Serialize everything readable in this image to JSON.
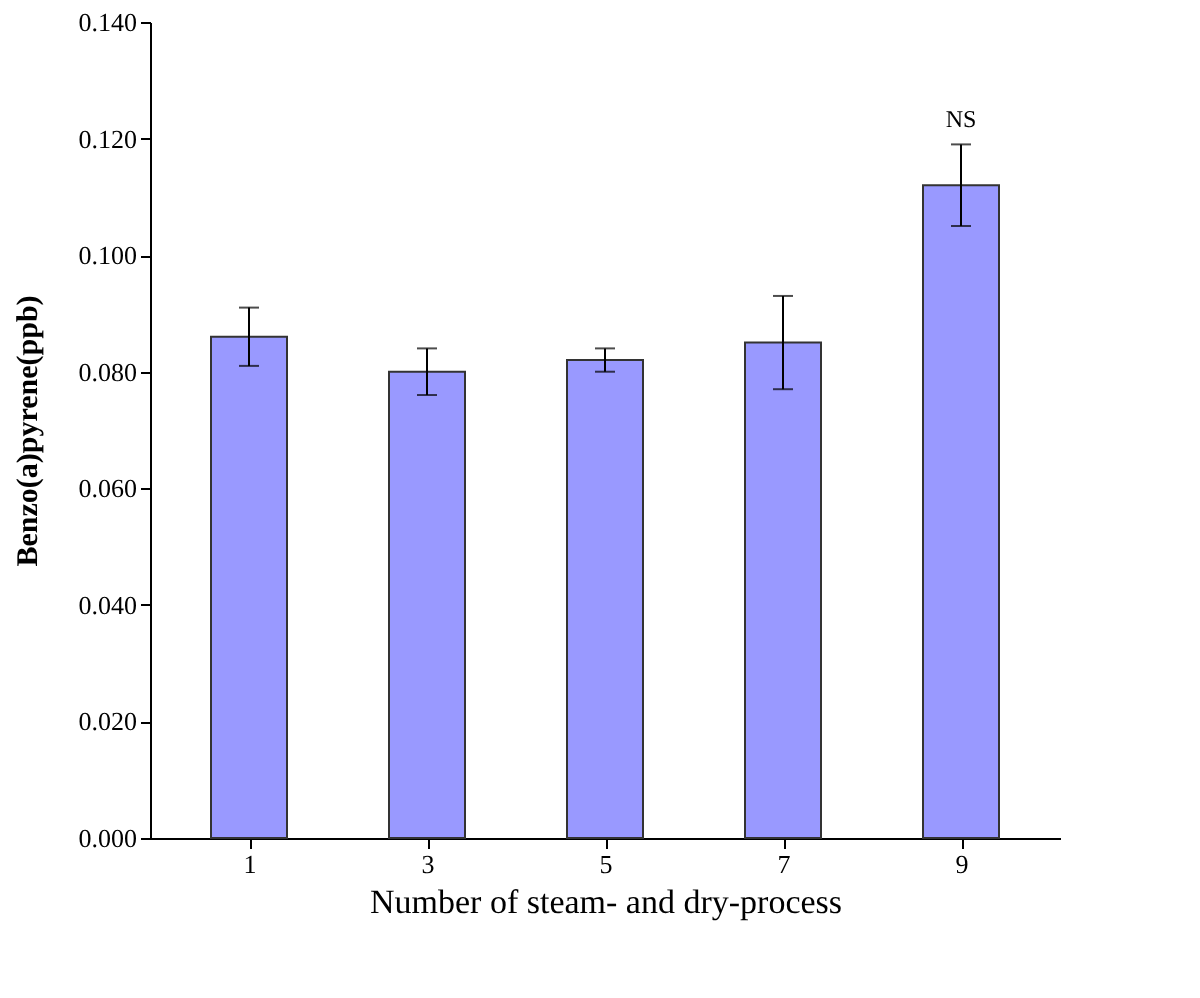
{
  "chart_data": {
    "type": "bar",
    "categories": [
      "1",
      "3",
      "5",
      "7",
      "9"
    ],
    "values": [
      0.086,
      0.08,
      0.082,
      0.085,
      0.112
    ],
    "errors": [
      0.005,
      0.004,
      0.002,
      0.008,
      0.007
    ],
    "color": "#9999ff",
    "xlabel": "Number of steam- and dry-process",
    "ylabel": "Benzo(a)pyrene(ppb)",
    "ylim": [
      0,
      0.14
    ],
    "yticks": [
      {
        "value": 0,
        "label": "0.000"
      },
      {
        "value": 0.02,
        "label": "0.020"
      },
      {
        "value": 0.04,
        "label": "0.040"
      },
      {
        "value": 0.06,
        "label": "0.060"
      },
      {
        "value": 0.08,
        "label": "0.080"
      },
      {
        "value": 0.1,
        "label": "0.100"
      },
      {
        "value": 0.12,
        "label": "0.120"
      },
      {
        "value": 0.14,
        "label": "0.140"
      }
    ],
    "annotations": [
      {
        "text": "NS",
        "x": "9",
        "y": 0.121
      }
    ],
    "grid": false
  }
}
